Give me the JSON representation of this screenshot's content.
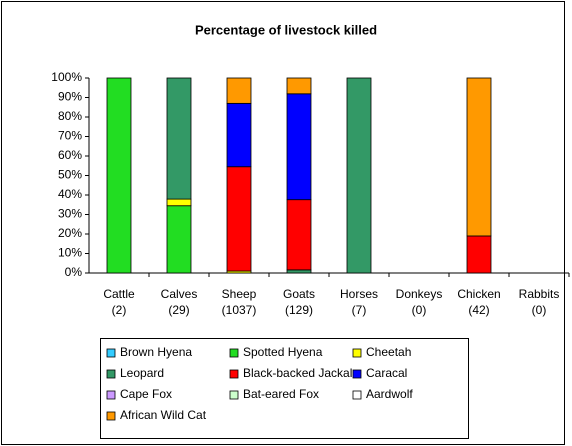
{
  "chart_data": {
    "type": "stacked_bar_100",
    "title": "Percentage of livestock killed",
    "categories": [
      "Cattle (2)",
      "Calves (29)",
      "Sheep (1037)",
      "Goats (129)",
      "Horses (7)",
      "Donkeys (0)",
      "Chicken (42)",
      "Rabbits (0)"
    ],
    "series": [
      {
        "name": "Brown Hyena",
        "color": "#33ccff",
        "values": [
          0,
          0,
          0,
          0,
          0,
          0,
          0,
          0
        ]
      },
      {
        "name": "Spotted Hyena",
        "color": "#22dd22",
        "values": [
          100,
          34.5,
          0,
          0,
          0,
          0,
          0,
          0
        ]
      },
      {
        "name": "Cheetah",
        "color": "#ffff00",
        "values": [
          0,
          3.4,
          1,
          0,
          0,
          0,
          0,
          0
        ]
      },
      {
        "name": "Leopard",
        "color": "#339966",
        "values": [
          0,
          62.1,
          0,
          1.6,
          100,
          0,
          0,
          0
        ]
      },
      {
        "name": "Black-backed Jackal",
        "color": "#ff0000",
        "values": [
          0,
          0,
          53.5,
          36,
          0,
          0,
          19,
          0
        ]
      },
      {
        "name": "Caracal",
        "color": "#0000ff",
        "values": [
          0,
          0,
          32.5,
          54.3,
          0,
          0,
          0,
          0
        ]
      },
      {
        "name": "Cape Fox",
        "color": "#cc99ff",
        "values": [
          0,
          0,
          0,
          0,
          0,
          0,
          0,
          0
        ]
      },
      {
        "name": "Bat-eared Fox",
        "color": "#ccffcc",
        "values": [
          0,
          0,
          0,
          0,
          0,
          0,
          0,
          0
        ]
      },
      {
        "name": "Aardwolf",
        "color": "#ffffff",
        "values": [
          0,
          0,
          0,
          0,
          0,
          0,
          0,
          0
        ]
      },
      {
        "name": "African Wild Cat",
        "color": "#ff9900",
        "values": [
          0,
          0,
          13,
          8.1,
          0,
          0,
          81,
          0
        ]
      }
    ],
    "ylim": [
      0,
      100
    ],
    "yticks": [
      {
        "value": 0,
        "label": "0%"
      },
      {
        "value": 10,
        "label": "10%"
      },
      {
        "value": 20,
        "label": "20%"
      },
      {
        "value": 30,
        "label": "30%"
      },
      {
        "value": 40,
        "label": "40%"
      },
      {
        "value": 50,
        "label": "50%"
      },
      {
        "value": 60,
        "label": "60%"
      },
      {
        "value": 70,
        "label": "70%"
      },
      {
        "value": 80,
        "label": "80%"
      },
      {
        "value": 90,
        "label": "90%"
      },
      {
        "value": 100,
        "label": "100%"
      }
    ],
    "legend": "bottom"
  }
}
